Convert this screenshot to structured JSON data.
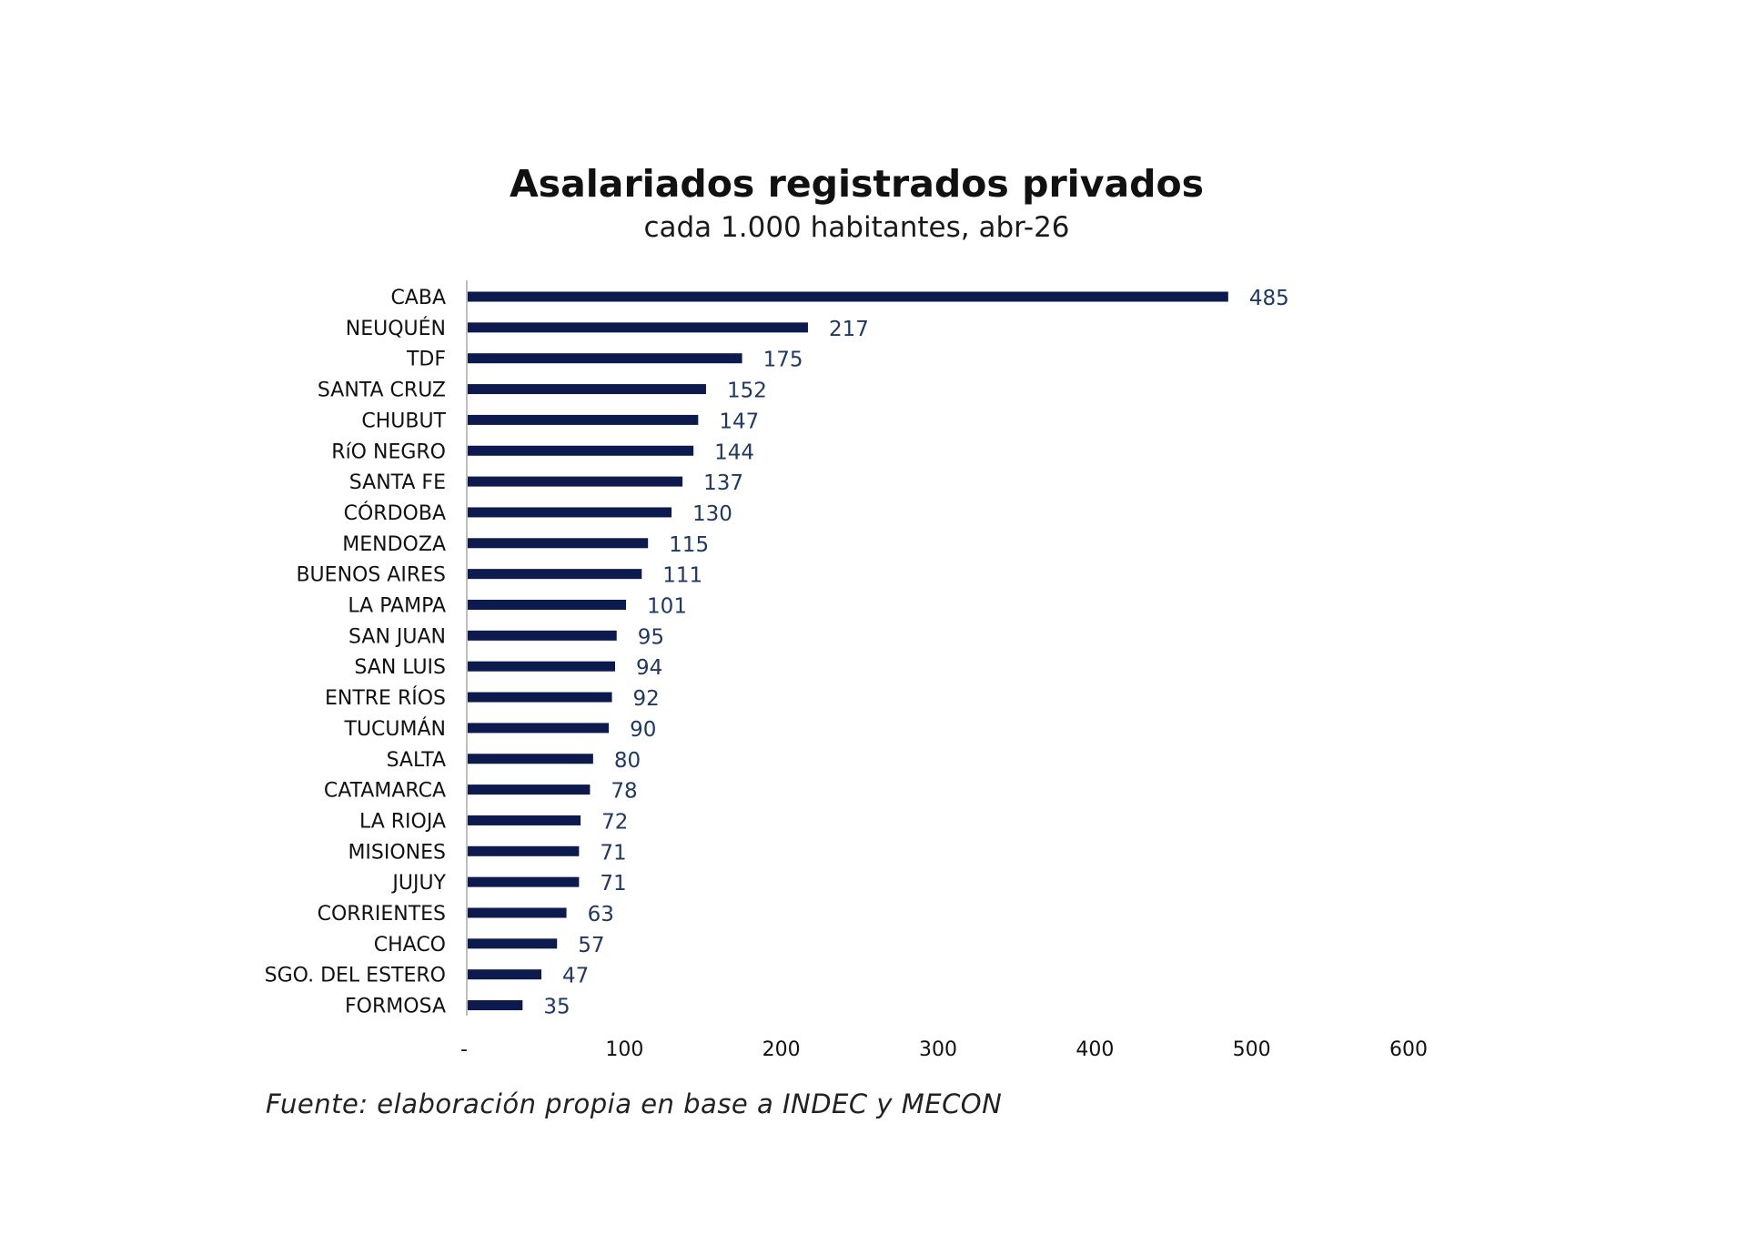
{
  "chart_data": {
    "type": "bar",
    "orientation": "horizontal",
    "title": "Asalariados registrados privados",
    "subtitle": "cada 1.000 habitantes, abr-26",
    "categories": [
      "CABA",
      "NEUQUÉN",
      "TDF",
      "SANTA CRUZ",
      "CHUBUT",
      "RíO NEGRO",
      "SANTA FE",
      "CÓRDOBA",
      "MENDOZA",
      "BUENOS AIRES",
      "LA PAMPA",
      "SAN JUAN",
      "SAN LUIS",
      "ENTRE RÍOS",
      "TUCUMÁN",
      "SALTA",
      "CATAMARCA",
      "LA RIOJA",
      "MISIONES",
      "JUJUY",
      "CORRIENTES",
      "CHACO",
      "SGO. DEL ESTERO",
      "FORMOSA"
    ],
    "values": [
      485,
      217,
      175,
      152,
      147,
      144,
      137,
      130,
      115,
      111,
      101,
      95,
      94,
      92,
      90,
      80,
      78,
      72,
      71,
      71,
      63,
      57,
      47,
      35
    ],
    "value_labels": [
      "485",
      "217",
      "175",
      "152",
      "147",
      "144",
      "137",
      "130",
      "115",
      "111",
      "101",
      "95",
      "94",
      "92",
      "90",
      "80",
      "78",
      "72",
      "71",
      "71",
      "63",
      "57",
      "47",
      "35"
    ],
    "xlim": [
      0,
      600
    ],
    "xticks": [
      0,
      100,
      200,
      300,
      400,
      500,
      600
    ],
    "xtick_labels": [
      "-",
      "100",
      "200",
      "300",
      "400",
      "500",
      "600"
    ],
    "xlabel": "",
    "ylabel": "",
    "grid": false,
    "legend": "none",
    "colors": {
      "bar": "#0d1a4d",
      "value_label": "#1f3864",
      "axis": "#bfbfbf"
    }
  },
  "source_note": "Fuente: elaboración propia en base a INDEC y MECON"
}
